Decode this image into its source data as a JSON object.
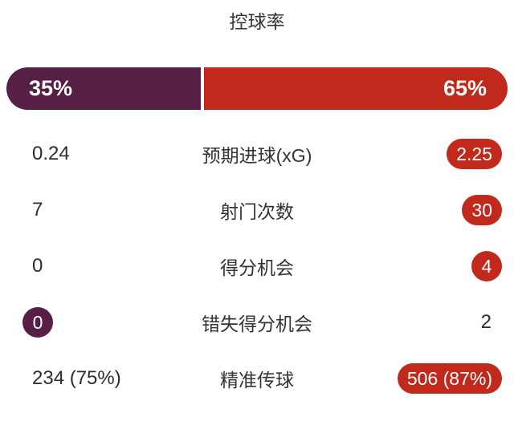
{
  "chart_data": {
    "type": "bar",
    "title": "控球率",
    "legend_position": "none",
    "possession": {
      "home_pct": 35,
      "away_pct": 65,
      "home_label": "35%",
      "away_label": "65%"
    },
    "stats": [
      {
        "label": "预期进球(xG)",
        "home": "0.24",
        "away": "2.25",
        "highlight": "away"
      },
      {
        "label": "射门次数",
        "home": "7",
        "away": "30",
        "highlight": "away"
      },
      {
        "label": "得分机会",
        "home": "0",
        "away": "4",
        "highlight": "away"
      },
      {
        "label": "错失得分机会",
        "home": "0",
        "away": "2",
        "highlight": "home"
      },
      {
        "label": "精准传球",
        "home": "234 (75%)",
        "away": "506 (87%)",
        "highlight": "away"
      }
    ]
  },
  "colors": {
    "home": "#571f46",
    "away": "#c1291c",
    "text": "#333333",
    "value_text": "#2d2d2d",
    "badge_text": "#ffffff",
    "background": "#ffffff"
  }
}
